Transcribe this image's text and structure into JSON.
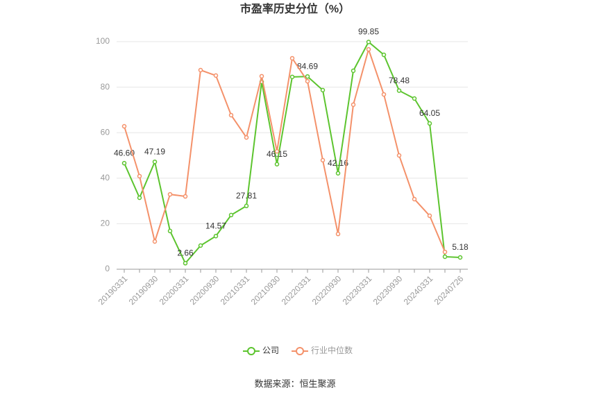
{
  "chart_data": {
    "type": "line",
    "title": "市盈率历史分位（%）",
    "categories": [
      "20190331",
      null,
      "20190930",
      null,
      "20200331",
      null,
      "20200930",
      null,
      "20210331",
      null,
      "20210930",
      null,
      "20220331",
      null,
      "20220930",
      null,
      "20230331",
      null,
      "20230930",
      null,
      "20240331",
      null,
      "20240726"
    ],
    "series": [
      {
        "name": "公司",
        "color": "#5cc42e",
        "values": [
          46.6,
          31.4,
          47.19,
          16.8,
          2.66,
          10.4,
          14.57,
          23.8,
          27.81,
          82.3,
          46.15,
          84.5,
          84.69,
          78.7,
          42.16,
          87.2,
          99.85,
          94.2,
          78.48,
          75.0,
          64.05,
          5.5,
          5.18
        ],
        "value_labels": [
          "46.60",
          null,
          "47.19",
          null,
          "2.66",
          null,
          "14.57",
          null,
          "27.81",
          null,
          "46.15",
          null,
          "84.69",
          null,
          "42.16",
          null,
          "99.85",
          null,
          "78.48",
          null,
          "64.05",
          null,
          "5.18"
        ]
      },
      {
        "name": "行业中位数",
        "color": "#f4916a",
        "values": [
          62.8,
          40.9,
          12.2,
          32.9,
          32.0,
          87.5,
          85.1,
          67.7,
          57.9,
          84.8,
          51.8,
          92.7,
          82.6,
          47.9,
          15.5,
          72.3,
          96.6,
          76.8,
          50.0,
          30.8,
          23.5,
          7.6,
          null
        ]
      }
    ],
    "ylim": [
      0,
      100
    ],
    "yticks": [
      0,
      20,
      40,
      60,
      80,
      100
    ],
    "grid": true,
    "source": "数据来源：恒生聚源"
  }
}
